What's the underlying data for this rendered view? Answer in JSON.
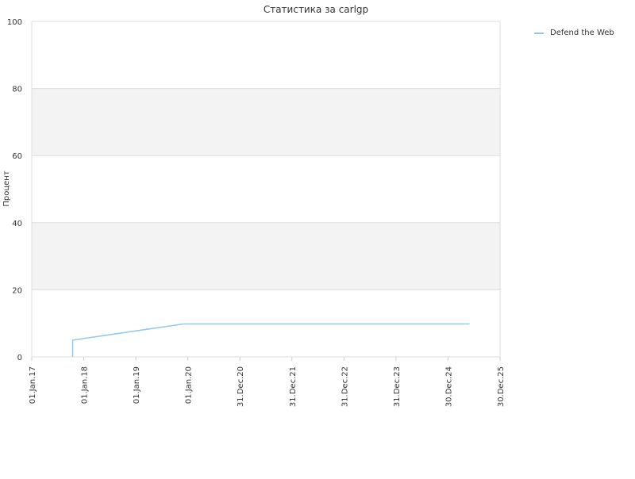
{
  "chart_data": {
    "type": "line",
    "title": "Статистика за carlgp",
    "xlabel": "",
    "ylabel": "Процент",
    "ylim": [
      0,
      100
    ],
    "yticks": [
      0,
      20,
      40,
      60,
      80,
      100
    ],
    "xlim": [
      "2017-01-01",
      "2025-12-30"
    ],
    "xticks": [
      {
        "date": "2017-01-01",
        "label": "01.Jan.17"
      },
      {
        "date": "2018-01-01",
        "label": "01.Jan.18"
      },
      {
        "date": "2019-01-01",
        "label": "01.Jan.19"
      },
      {
        "date": "2020-01-01",
        "label": "01.Jan.20"
      },
      {
        "date": "2020-12-31",
        "label": "31.Dec.20"
      },
      {
        "date": "2021-12-31",
        "label": "31.Dec.21"
      },
      {
        "date": "2022-12-31",
        "label": "31.Dec.22"
      },
      {
        "date": "2023-12-31",
        "label": "31.Dec.23"
      },
      {
        "date": "2024-12-30",
        "label": "30.Dec.24"
      },
      {
        "date": "2025-12-30",
        "label": "30.Dec.25"
      }
    ],
    "grid": true,
    "banded_background": true,
    "legend_position": "top-right",
    "series": [
      {
        "name": "Defend the Web",
        "color": "#90c8f0",
        "points": [
          {
            "x": "2017-10-15",
            "y": 0
          },
          {
            "x": "2017-10-15",
            "y": 5
          },
          {
            "x": "2019-12-01",
            "y": 9.8
          },
          {
            "x": "2025-05-30",
            "y": 9.8
          }
        ]
      }
    ]
  }
}
